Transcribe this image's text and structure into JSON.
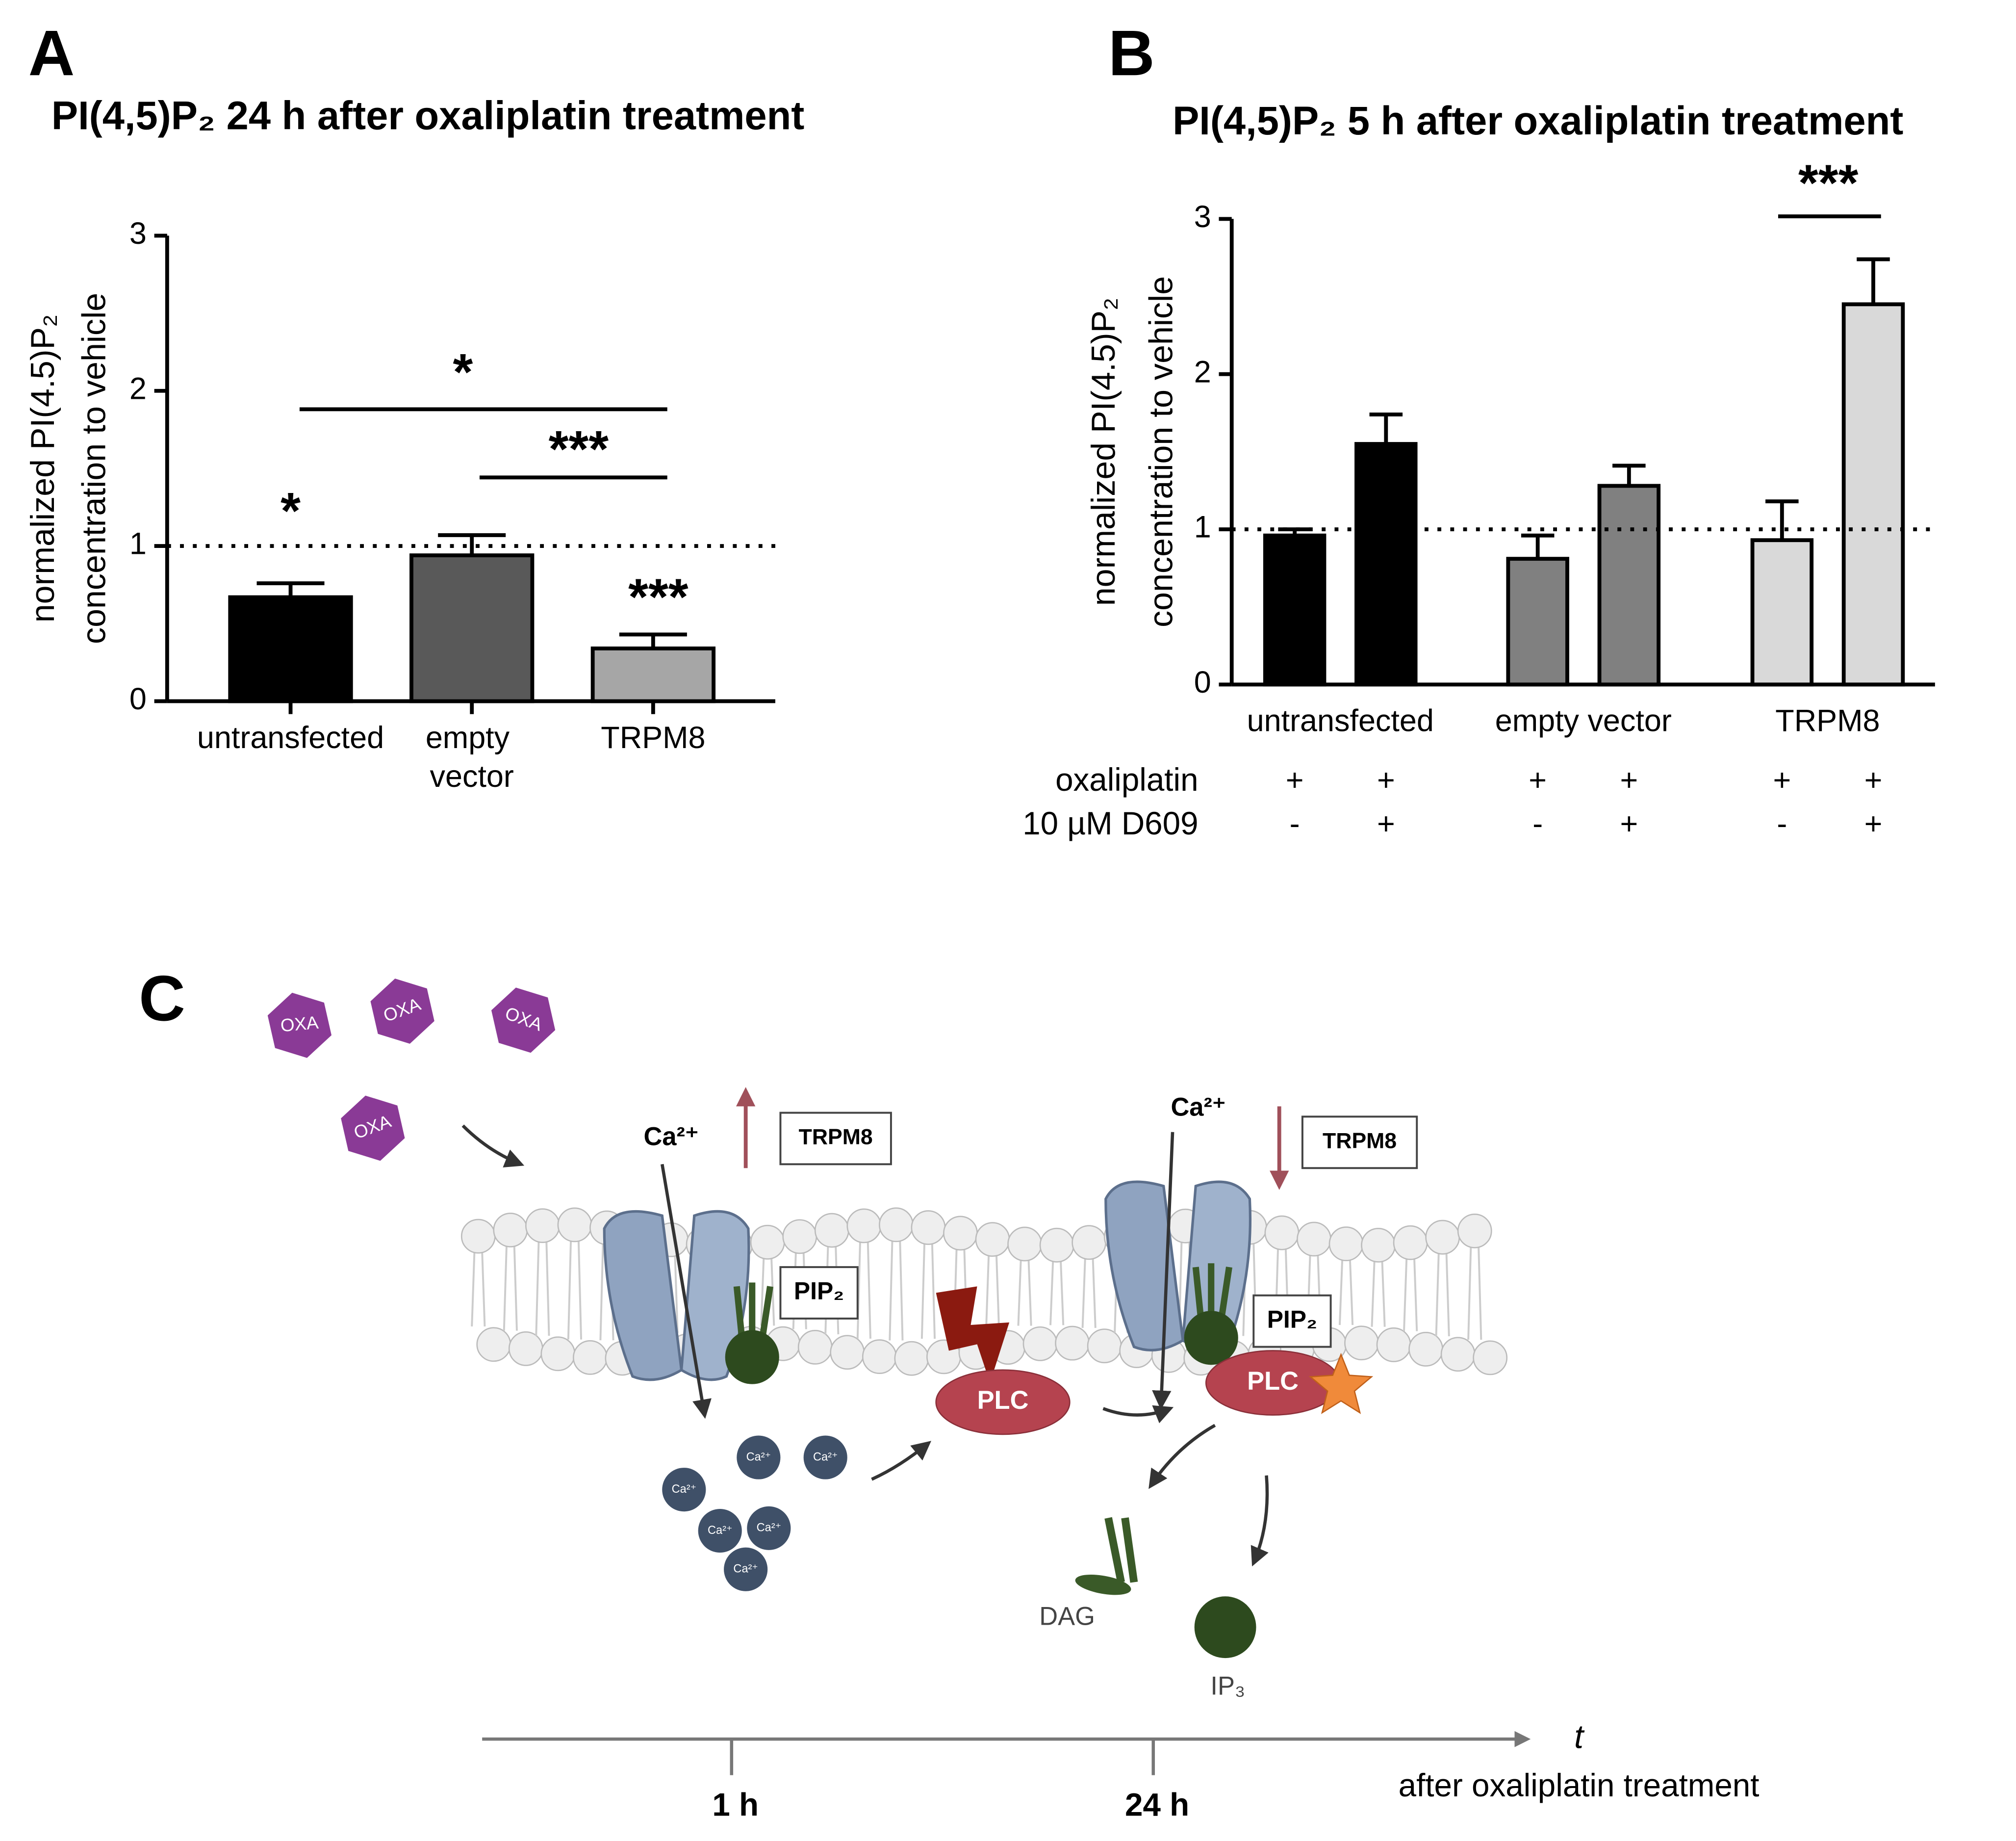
{
  "chart_data": [
    {
      "type": "bar",
      "panel": "A",
      "title": "PI(4,5)P₂ 24 h after oxaliplatin treatment",
      "ylabel": [
        "normalized PI(4.5)P₂",
        "concentration to vehicle"
      ],
      "categories": [
        "untransfected",
        "empty vector",
        "TRPM8"
      ],
      "values": [
        0.67,
        0.94,
        0.34
      ],
      "errors": [
        0.09,
        0.13,
        0.09
      ],
      "colors": [
        "#000000",
        "#595959",
        "#a6a6a6"
      ],
      "ylim": [
        0,
        3
      ],
      "yticks": [
        0,
        1,
        2,
        3
      ],
      "reference_line": 1,
      "annotations": [
        "*",
        "***",
        "*",
        "***"
      ]
    },
    {
      "type": "bar",
      "panel": "B",
      "title": "PI(4,5)P₂ 5 h after oxaliplatin treatment",
      "ylabel": [
        "normalized PI(4.5)P₂",
        "concentration to vehicle"
      ],
      "groups": [
        "untransfected",
        "empty vector",
        "TRPM8"
      ],
      "values": [
        0.96,
        1.55,
        0.81,
        1.28,
        0.93,
        2.45
      ],
      "errors": [
        0.04,
        0.19,
        0.15,
        0.13,
        0.25,
        0.29
      ],
      "colors": [
        "#000000",
        "#000000",
        "#808080",
        "#808080",
        "#d9d9d9",
        "#d9d9d9"
      ],
      "ylim": [
        0,
        3
      ],
      "yticks": [
        0,
        1,
        2,
        3
      ],
      "reference_line": 1,
      "rows": [
        {
          "name": "oxaliplatin",
          "values": [
            "+",
            "+",
            "+",
            "+",
            "+",
            "+"
          ]
        },
        {
          "name": "10 µM D609",
          "values": [
            "-",
            "+",
            "-",
            "+",
            "-",
            "+"
          ]
        }
      ],
      "annotations": [
        "***"
      ]
    }
  ],
  "diagram": {
    "label": "C",
    "oxa": [
      "OXA",
      "OXA",
      "OXA",
      "OXA"
    ],
    "ca_labels": [
      "Ca²⁺",
      "Ca²⁺"
    ],
    "trpm8": [
      "TRPM8",
      "TRPM8"
    ],
    "pip2": [
      "PIP₂",
      "PIP₂"
    ],
    "plc": [
      "PLC",
      "PLC"
    ],
    "ca_ions": [
      "Ca²⁺",
      "Ca²⁺",
      "Ca²⁺",
      "Ca²⁺",
      "Ca²⁺",
      "Ca²⁺"
    ],
    "dag": "DAG",
    "ip3": "IP₃",
    "axis_symbol": "t",
    "axis_label": "after oxaliplatin treatment",
    "times": [
      "1 h",
      "24 h"
    ]
  }
}
